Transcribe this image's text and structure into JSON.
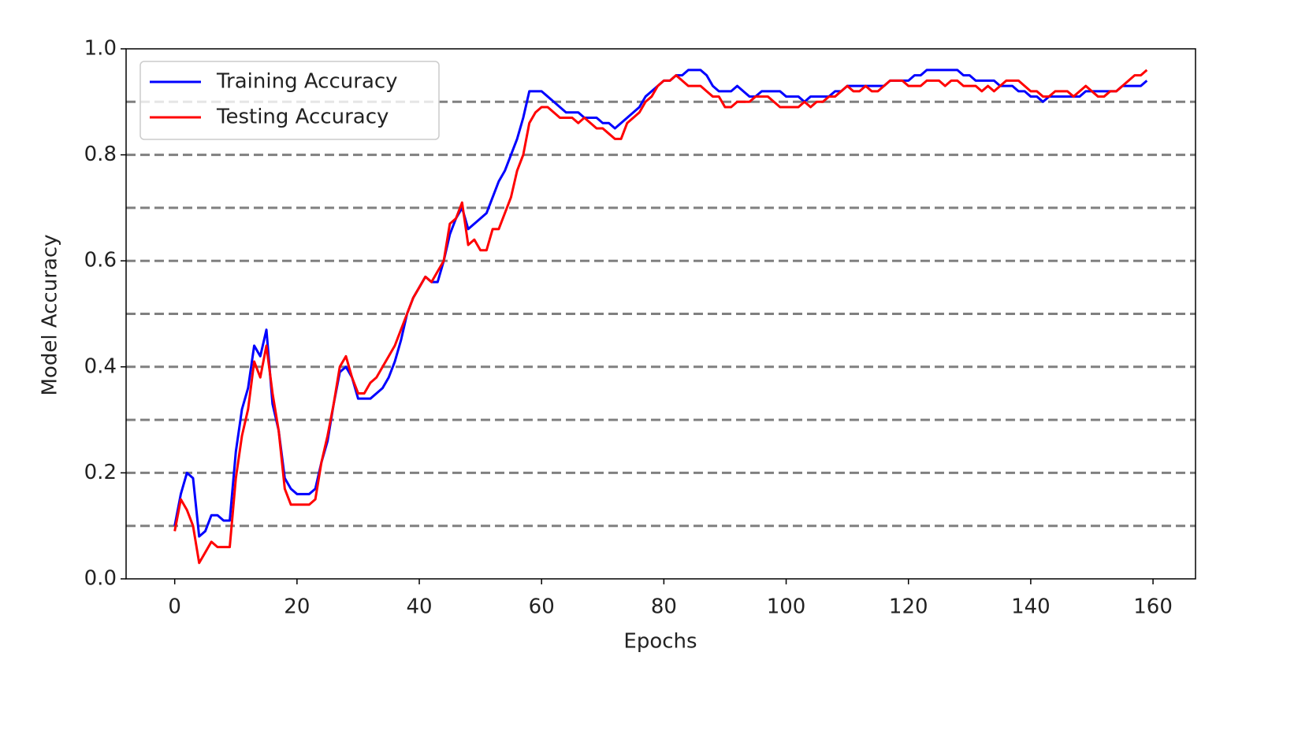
{
  "chart_data": {
    "type": "line",
    "xlabel": "Epochs",
    "ylabel": "Model Accuracy",
    "x": [
      0,
      1,
      2,
      3,
      4,
      5,
      6,
      7,
      8,
      9,
      10,
      11,
      12,
      13,
      14,
      15,
      16,
      17,
      18,
      19,
      20,
      21,
      22,
      23,
      24,
      25,
      26,
      27,
      28,
      29,
      30,
      31,
      32,
      33,
      34,
      35,
      36,
      37,
      38,
      39,
      40,
      41,
      42,
      43,
      44,
      45,
      46,
      47,
      48,
      49,
      50,
      51,
      52,
      53,
      54,
      55,
      56,
      57,
      58,
      59,
      60,
      61,
      62,
      63,
      64,
      65,
      66,
      67,
      68,
      69,
      70,
      71,
      72,
      73,
      74,
      75,
      76,
      77,
      78,
      79,
      80,
      81,
      82,
      83,
      84,
      85,
      86,
      87,
      88,
      89,
      90,
      91,
      92,
      93,
      94,
      95,
      96,
      97,
      98,
      99,
      100,
      101,
      102,
      103,
      104,
      105,
      106,
      107,
      108,
      109,
      110,
      111,
      112,
      113,
      114,
      115,
      116,
      117,
      118,
      119,
      120,
      121,
      122,
      123,
      124,
      125,
      126,
      127,
      128,
      129,
      130,
      131,
      132,
      133,
      134,
      135,
      136,
      137,
      138,
      139,
      140,
      141,
      142,
      143,
      144,
      145,
      146,
      147,
      148,
      149,
      150,
      151,
      152,
      153,
      154,
      155,
      156,
      157,
      158,
      159
    ],
    "series": [
      {
        "name": "Training Accuracy",
        "color": "#0000ff",
        "values": [
          0.1,
          0.16,
          0.2,
          0.19,
          0.08,
          0.09,
          0.12,
          0.12,
          0.11,
          0.11,
          0.24,
          0.32,
          0.36,
          0.44,
          0.42,
          0.47,
          0.33,
          0.28,
          0.19,
          0.17,
          0.16,
          0.16,
          0.16,
          0.17,
          0.22,
          0.26,
          0.33,
          0.39,
          0.4,
          0.38,
          0.34,
          0.34,
          0.34,
          0.35,
          0.36,
          0.38,
          0.41,
          0.45,
          0.5,
          0.53,
          0.55,
          0.57,
          0.56,
          0.56,
          0.6,
          0.65,
          0.68,
          0.7,
          0.66,
          0.67,
          0.68,
          0.69,
          0.72,
          0.75,
          0.77,
          0.8,
          0.83,
          0.87,
          0.92,
          0.92,
          0.92,
          0.91,
          0.9,
          0.89,
          0.88,
          0.88,
          0.88,
          0.87,
          0.87,
          0.87,
          0.86,
          0.86,
          0.85,
          0.86,
          0.87,
          0.88,
          0.89,
          0.91,
          0.92,
          0.93,
          0.94,
          0.94,
          0.95,
          0.95,
          0.96,
          0.96,
          0.96,
          0.95,
          0.93,
          0.92,
          0.92,
          0.92,
          0.93,
          0.92,
          0.91,
          0.91,
          0.92,
          0.92,
          0.92,
          0.92,
          0.91,
          0.91,
          0.91,
          0.9,
          0.91,
          0.91,
          0.91,
          0.91,
          0.92,
          0.92,
          0.93,
          0.93,
          0.93,
          0.93,
          0.93,
          0.93,
          0.93,
          0.94,
          0.94,
          0.94,
          0.94,
          0.95,
          0.95,
          0.96,
          0.96,
          0.96,
          0.96,
          0.96,
          0.96,
          0.95,
          0.95,
          0.94,
          0.94,
          0.94,
          0.94,
          0.93,
          0.93,
          0.93,
          0.92,
          0.92,
          0.91,
          0.91,
          0.9,
          0.91,
          0.91,
          0.91,
          0.91,
          0.91,
          0.91,
          0.92,
          0.92,
          0.92,
          0.92,
          0.92,
          0.92,
          0.93,
          0.93,
          0.93,
          0.93,
          0.94
        ]
      },
      {
        "name": "Testing Accuracy",
        "color": "#ff0000",
        "values": [
          0.09,
          0.15,
          0.13,
          0.1,
          0.03,
          0.05,
          0.07,
          0.06,
          0.06,
          0.06,
          0.19,
          0.27,
          0.32,
          0.41,
          0.38,
          0.44,
          0.35,
          0.28,
          0.17,
          0.14,
          0.14,
          0.14,
          0.14,
          0.15,
          0.22,
          0.27,
          0.33,
          0.4,
          0.42,
          0.38,
          0.35,
          0.35,
          0.37,
          0.38,
          0.4,
          0.42,
          0.44,
          0.47,
          0.5,
          0.53,
          0.55,
          0.57,
          0.56,
          0.58,
          0.6,
          0.67,
          0.68,
          0.71,
          0.63,
          0.64,
          0.62,
          0.62,
          0.66,
          0.66,
          0.69,
          0.72,
          0.77,
          0.8,
          0.86,
          0.88,
          0.89,
          0.89,
          0.88,
          0.87,
          0.87,
          0.87,
          0.86,
          0.87,
          0.86,
          0.85,
          0.85,
          0.84,
          0.83,
          0.83,
          0.86,
          0.87,
          0.88,
          0.9,
          0.91,
          0.93,
          0.94,
          0.94,
          0.95,
          0.94,
          0.93,
          0.93,
          0.93,
          0.92,
          0.91,
          0.91,
          0.89,
          0.89,
          0.9,
          0.9,
          0.9,
          0.91,
          0.91,
          0.91,
          0.9,
          0.89,
          0.89,
          0.89,
          0.89,
          0.9,
          0.89,
          0.9,
          0.9,
          0.91,
          0.91,
          0.92,
          0.93,
          0.92,
          0.92,
          0.93,
          0.92,
          0.92,
          0.93,
          0.94,
          0.94,
          0.94,
          0.93,
          0.93,
          0.93,
          0.94,
          0.94,
          0.94,
          0.93,
          0.94,
          0.94,
          0.93,
          0.93,
          0.93,
          0.92,
          0.93,
          0.92,
          0.93,
          0.94,
          0.94,
          0.94,
          0.93,
          0.92,
          0.92,
          0.91,
          0.91,
          0.92,
          0.92,
          0.92,
          0.91,
          0.92,
          0.93,
          0.92,
          0.91,
          0.91,
          0.92,
          0.92,
          0.93,
          0.94,
          0.95,
          0.95,
          0.96
        ]
      }
    ],
    "xlim": [
      -7.95,
      166.95
    ],
    "xticks": [
      0,
      20,
      40,
      60,
      80,
      100,
      120,
      140,
      160
    ],
    "ylim": [
      0,
      1
    ],
    "yticks": [
      {
        "value": 0,
        "label": "0.0"
      },
      0.2,
      0.4,
      0.6,
      0.8,
      {
        "value": 1,
        "label": "1.0"
      }
    ],
    "hlines": [
      0.1,
      0.2,
      0.3,
      0.4,
      0.5,
      0.6,
      0.7,
      0.8,
      0.9
    ],
    "hline_color": "#808080",
    "legend": "upper left"
  }
}
